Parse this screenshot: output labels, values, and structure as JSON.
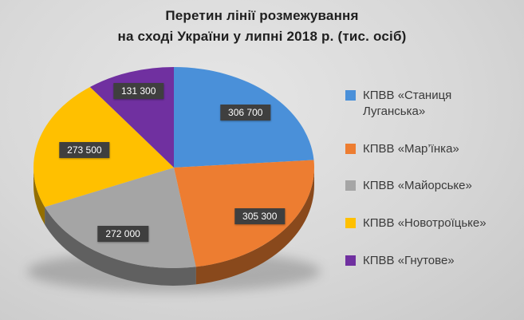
{
  "title": {
    "line1": "Перетин лінії розмежування",
    "line2": "на сході України у липні 2018 р. (тис. осіб)"
  },
  "chart_data": {
    "type": "pie",
    "title": "Перетин лінії розмежування на сході України у липні 2018 р. (тис. осіб)",
    "unit": "тис. осіб",
    "legend_position": "right",
    "direction": "clockwise",
    "start_angle_deg": 0,
    "style": "3d-pie",
    "label_box_color": "#3F3F3F",
    "label_text_color": "#FFFFFF",
    "slices": [
      {
        "label": "КПВВ «Станиця Луганська»",
        "value": 306700,
        "display": "306 700",
        "color": "#4A90D9"
      },
      {
        "label": "КПВВ «Мар’їнка»",
        "value": 305300,
        "display": "305 300",
        "color": "#ED7D31"
      },
      {
        "label": "КПВВ «Майорське»",
        "value": 272000,
        "display": "272 000",
        "color": "#A5A5A5"
      },
      {
        "label": "КПВВ «Новотроїцьке»",
        "value": 273500,
        "display": "273 500",
        "color": "#FFC000"
      },
      {
        "label": "КПВВ «Гнутове»",
        "value": 131300,
        "display": "131 300",
        "color": "#7030A0"
      }
    ]
  }
}
